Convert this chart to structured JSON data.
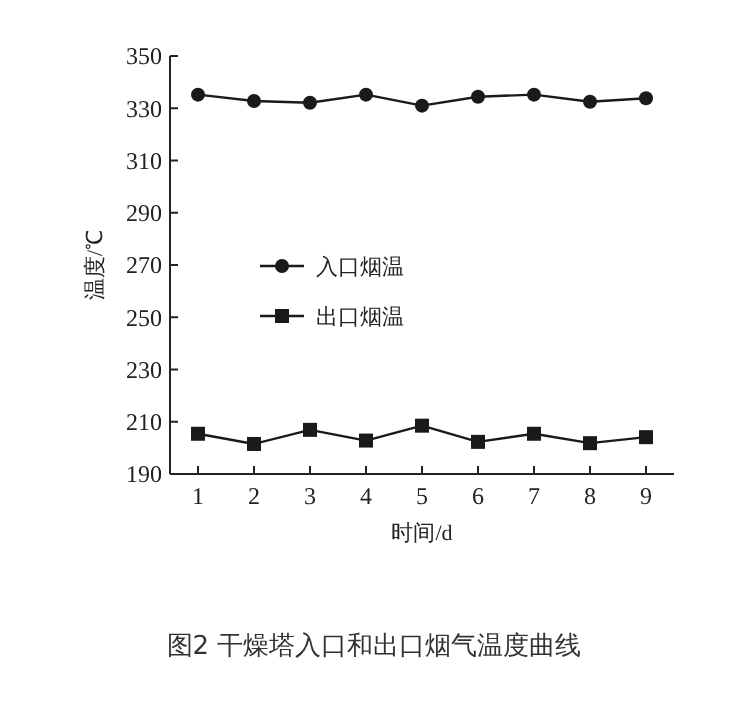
{
  "chart_data": {
    "type": "line",
    "xlabel": "时间/d",
    "ylabel": "温度/℃",
    "x": [
      1,
      2,
      3,
      4,
      5,
      6,
      7,
      8,
      9
    ],
    "series": [
      {
        "name": "入口烟温",
        "color": "#1a1a1a",
        "marker": "circle",
        "values": [
          335.2,
          332.8,
          332.1,
          335.2,
          331.0,
          334.4,
          335.2,
          332.5,
          333.8
        ]
      },
      {
        "name": "出口烟温",
        "color": "#1a1a1a",
        "marker": "square",
        "values": [
          205.4,
          201.5,
          206.9,
          202.8,
          208.5,
          202.3,
          205.4,
          201.8,
          204.1
        ]
      }
    ],
    "xlim": [
      0.5,
      9.5
    ],
    "xticks": [
      1,
      2,
      3,
      4,
      5,
      6,
      7,
      8,
      9
    ],
    "ylim": [
      190,
      350
    ],
    "yticks": [
      190,
      210,
      230,
      250,
      270,
      290,
      310,
      330,
      350
    ],
    "legend": "left",
    "grid": false,
    "annotations": [
      "图2 干燥塔入口和出口烟气温度曲线"
    ]
  }
}
